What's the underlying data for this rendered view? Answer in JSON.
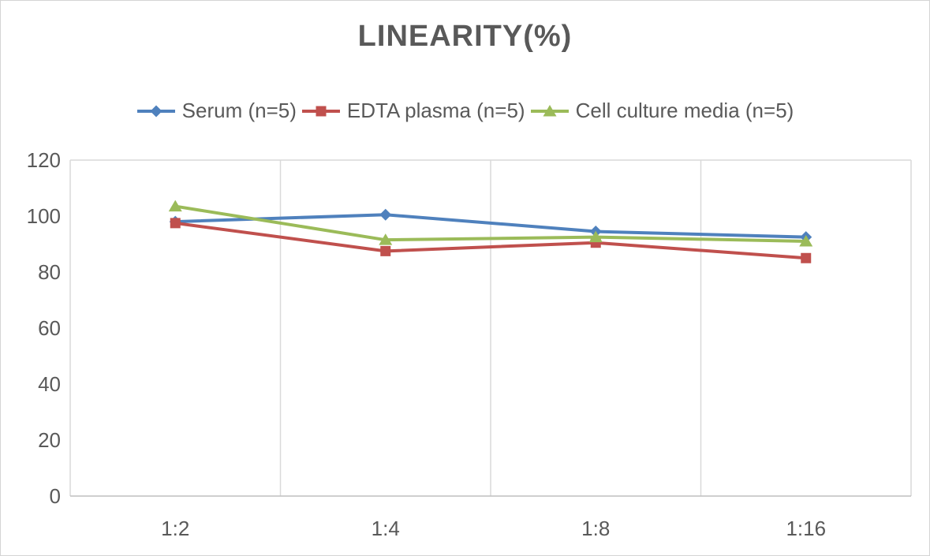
{
  "chart_data": {
    "type": "line",
    "title": "LINEARITY(%)",
    "categories": [
      "1:2",
      "1:4",
      "1:8",
      "1:16"
    ],
    "series": [
      {
        "name": "Serum (n=5)",
        "color": "#4F81BD",
        "marker": "diamond",
        "values": [
          98,
          100.5,
          94.5,
          92.5
        ]
      },
      {
        "name": "EDTA plasma (n=5)",
        "color": "#C0504D",
        "marker": "square",
        "values": [
          97.5,
          87.5,
          90.5,
          85
        ]
      },
      {
        "name": "Cell culture media (n=5)",
        "color": "#9BBB59",
        "marker": "triangle",
        "values": [
          103.5,
          91.5,
          92.5,
          91
        ]
      }
    ],
    "xlabel": "",
    "ylabel": "",
    "y_axis": {
      "min": 0,
      "max": 120,
      "step": 20,
      "ticks": [
        "0",
        "20",
        "40",
        "60",
        "80",
        "100",
        "120"
      ]
    },
    "legend_position": "top",
    "grid": "vertical-only",
    "gridline_color": "#D9D9D9",
    "axis_line_color": "#BFBFBF",
    "text_color": "#595959",
    "background_color": "#FFFFFF"
  }
}
